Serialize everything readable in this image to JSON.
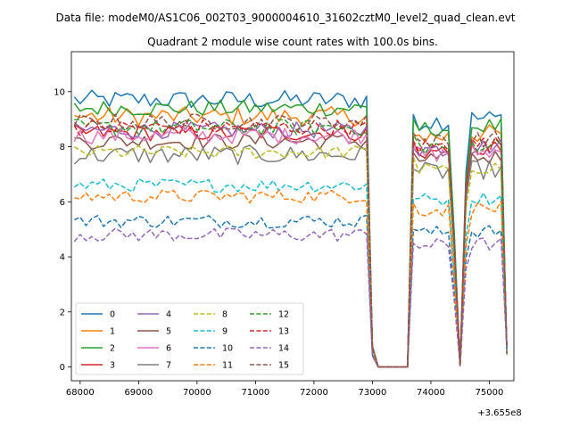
{
  "suptitle": "Data file: modeM0/AS1C06_002T03_9000004610_31602cztM0_level2_quad_clean.evt",
  "chart_data": {
    "type": "line",
    "title": "Quadrant 2 module wise count rates with 100.0s bins.",
    "xlabel": "",
    "ylabel": "",
    "x_offset_label": "+3.655e8",
    "xlim": [
      67850,
      75420
    ],
    "ylim": [
      -0.5,
      11.45
    ],
    "x_ticks": [
      {
        "value": 68000,
        "label": "68000"
      },
      {
        "value": 69000,
        "label": "69000"
      },
      {
        "value": 70000,
        "label": "70000"
      },
      {
        "value": 71000,
        "label": "71000"
      },
      {
        "value": 72000,
        "label": "72000"
      },
      {
        "value": 73000,
        "label": "73000"
      },
      {
        "value": 74000,
        "label": "74000"
      },
      {
        "value": 75000,
        "label": "75000"
      }
    ],
    "y_ticks": [
      {
        "value": 0,
        "label": "0"
      },
      {
        "value": 2,
        "label": "2"
      },
      {
        "value": 4,
        "label": "4"
      },
      {
        "value": 6,
        "label": "6"
      },
      {
        "value": 8,
        "label": "8"
      },
      {
        "value": 10,
        "label": "10"
      }
    ],
    "grid": false,
    "legend_position": "lower-left",
    "bin_size_s": 100,
    "x_start": 67900,
    "x_end": 75300,
    "gaps": [
      {
        "from": 73100,
        "to": 73600
      },
      {
        "from": 74500,
        "to": 74500
      }
    ],
    "series": [
      {
        "name": "0",
        "color": "#1f77b4",
        "dash": "solid",
        "base": 9.7,
        "noise": 0.35
      },
      {
        "name": "1",
        "color": "#ff7f0e",
        "dash": "solid",
        "base": 9.1,
        "noise": 0.35
      },
      {
        "name": "2",
        "color": "#2ca02c",
        "dash": "solid",
        "base": 9.4,
        "noise": 0.3
      },
      {
        "name": "3",
        "color": "#d62728",
        "dash": "solid",
        "base": 8.5,
        "noise": 0.3
      },
      {
        "name": "4",
        "color": "#9467bd",
        "dash": "solid",
        "base": 8.6,
        "noise": 0.3
      },
      {
        "name": "5",
        "color": "#8c564b",
        "dash": "solid",
        "base": 8.2,
        "noise": 0.3
      },
      {
        "name": "6",
        "color": "#e377c2",
        "dash": "solid",
        "base": 8.4,
        "noise": 0.3
      },
      {
        "name": "7",
        "color": "#7f7f7f",
        "dash": "solid",
        "base": 7.7,
        "noise": 0.35
      },
      {
        "name": "8",
        "color": "#bcbd22",
        "dash": "dashed",
        "base": 7.8,
        "noise": 0.25
      },
      {
        "name": "9",
        "color": "#17becf",
        "dash": "dashed",
        "base": 6.6,
        "noise": 0.25
      },
      {
        "name": "10",
        "color": "#1f77b4",
        "dash": "dashed",
        "base": 5.3,
        "noise": 0.25
      },
      {
        "name": "11",
        "color": "#ff7f0e",
        "dash": "dashed",
        "base": 6.2,
        "noise": 0.25
      },
      {
        "name": "12",
        "color": "#2ca02c",
        "dash": "dashed",
        "base": 8.7,
        "noise": 0.3
      },
      {
        "name": "13",
        "color": "#d62728",
        "dash": "dashed",
        "base": 8.7,
        "noise": 0.3
      },
      {
        "name": "14",
        "color": "#9467bd",
        "dash": "dashed",
        "base": 4.8,
        "noise": 0.25
      },
      {
        "name": "15",
        "color": "#8c564b",
        "dash": "dashed",
        "base": 8.9,
        "noise": 0.3
      }
    ]
  }
}
